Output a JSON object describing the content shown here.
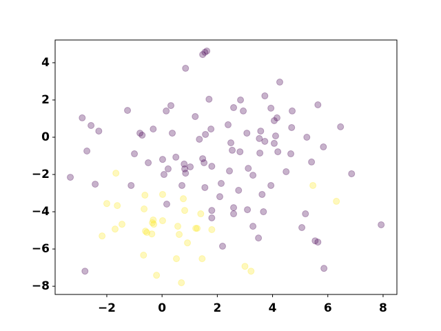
{
  "chart_data": {
    "type": "scatter",
    "series": [
      {
        "color": "#440154",
        "x": [
          -3.32,
          -2.89,
          -2.57,
          -2.29,
          -2.72,
          -2.42,
          -2.79,
          -1.25,
          -1.12,
          -1.0,
          -0.8,
          -0.72,
          -0.5,
          -0.32,
          0.02,
          0.07,
          0.15,
          0.22,
          0.32,
          0.37,
          0.17,
          0.5,
          0.72,
          0.8,
          0.82,
          0.85,
          0.85,
          1.02,
          1.2,
          1.35,
          1.47,
          1.52,
          1.55,
          1.57,
          1.47,
          1.55,
          1.62,
          1.7,
          1.77,
          1.8,
          1.8,
          1.8,
          2.09,
          2.14,
          2.19,
          2.39,
          2.44,
          2.49,
          2.54,
          2.59,
          2.59,
          2.59,
          2.77,
          2.82,
          2.84,
          2.94,
          3.07,
          3.12,
          3.09,
          3.29,
          3.29,
          3.49,
          3.52,
          3.57,
          3.62,
          3.67,
          3.72,
          3.72,
          3.54,
          3.94,
          3.94,
          4.06,
          4.11,
          4.16,
          4.06,
          4.19,
          4.26,
          4.49,
          4.66,
          4.69,
          4.71,
          5.06,
          5.19,
          5.24,
          5.41,
          5.54,
          5.64,
          5.64,
          5.84,
          5.86,
          6.46,
          6.86,
          7.93
        ],
        "values": [
          -2.15,
          1.04,
          0.63,
          0.33,
          -0.74,
          -2.52,
          -7.19,
          1.44,
          -2.59,
          -0.89,
          0.22,
          0.11,
          -1.37,
          0.44,
          -1.19,
          -2.0,
          1.41,
          -1.7,
          1.7,
          0.22,
          -3.59,
          -1.07,
          -2.59,
          -1.44,
          -1.7,
          -1.93,
          3.7,
          -1.59,
          1.11,
          -0.11,
          -1.15,
          -1.37,
          -2.7,
          0.15,
          4.44,
          4.56,
          4.63,
          2.04,
          0.44,
          -1.56,
          -3.93,
          -4.33,
          -3.19,
          -2.48,
          -5.85,
          0.67,
          -1.81,
          -0.3,
          -0.7,
          -3.78,
          -4.11,
          1.59,
          -2.85,
          -0.78,
          2.0,
          1.41,
          0.22,
          -1.67,
          -3.89,
          -2.04,
          -4.78,
          -5.41,
          -0.07,
          0.33,
          -3.07,
          -4.0,
          2.22,
          -0.22,
          -0.85,
          1.56,
          -2.59,
          0.89,
          0.07,
          1.04,
          -0.33,
          -0.78,
          2.96,
          -1.85,
          -0.89,
          0.52,
          1.41,
          -4.85,
          -4.11,
          0.0,
          -1.33,
          -5.56,
          1.74,
          -5.63,
          -0.52,
          -7.04,
          0.56,
          -1.96,
          -4.7
        ]
      },
      {
        "color": "#fde725",
        "x": [
          -1.67,
          -2.0,
          -2.17,
          -1.7,
          -1.62,
          -1.45,
          -0.67,
          -0.65,
          -0.62,
          -0.6,
          -0.55,
          -0.37,
          -0.35,
          -0.32,
          -0.3,
          -0.2,
          0.02,
          0.02,
          0.52,
          0.57,
          0.62,
          0.7,
          0.77,
          0.82,
          0.92,
          1.22,
          1.27,
          1.4,
          1.45,
          1.8,
          3.0,
          3.22,
          5.46,
          6.31
        ],
        "values": [
          -1.93,
          -3.56,
          -5.3,
          -4.93,
          -3.67,
          -4.67,
          -6.33,
          -3.85,
          -3.11,
          -5.04,
          -5.11,
          -5.19,
          -4.59,
          -4.44,
          -4.67,
          -7.41,
          -3.07,
          -4.48,
          -6.52,
          -4.78,
          -5.22,
          -7.81,
          -3.3,
          -3.93,
          -5.67,
          -4.89,
          -4.89,
          -4.11,
          -6.52,
          -4.96,
          -6.93,
          -7.19,
          -2.59,
          -3.44
        ]
      }
    ],
    "xlim": [
      -3.87,
      8.5
    ],
    "ylim": [
      -8.44,
      5.22
    ],
    "xticks": [
      {
        "value": -2,
        "label": "−2"
      },
      0,
      2,
      4,
      6,
      8
    ],
    "yticks": [
      {
        "value": -8,
        "label": "−8"
      },
      {
        "value": -6,
        "label": "−6"
      },
      {
        "value": -4,
        "label": "−4"
      },
      {
        "value": -2,
        "label": "−2"
      },
      0,
      2,
      4
    ],
    "alpha": 0.3
  }
}
